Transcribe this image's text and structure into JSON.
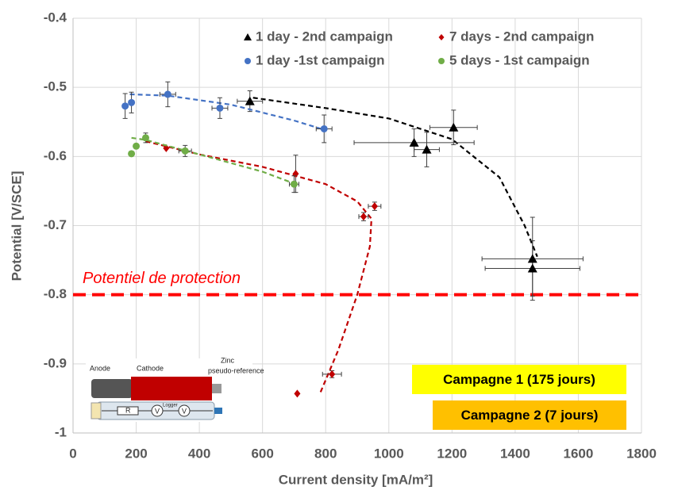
{
  "chart_data": {
    "type": "scatter",
    "x_label": "Current density [mA/m²]",
    "y_label": "Potential [V/SCE]",
    "xlim": [
      0,
      1800
    ],
    "xticks": [
      0,
      200,
      400,
      600,
      800,
      1000,
      1200,
      1400,
      1600,
      1800
    ],
    "ylim": [
      -1,
      -0.4
    ],
    "yticks": [
      -1,
      -0.9,
      -0.8,
      -0.7,
      -0.6,
      -0.5,
      -0.4
    ],
    "grid": true,
    "legend": "top",
    "series": [
      {
        "name": "1 day - 2nd campaign",
        "color": "#000000",
        "marker": "triangle",
        "x": [
          560,
          1080,
          1120,
          1205,
          1455,
          1455
        ],
        "values": [
          -0.52,
          -0.58,
          -0.59,
          -0.558,
          -0.748,
          -0.762
        ],
        "x_errors": [
          40,
          190,
          40,
          75,
          160,
          150
        ],
        "y_errors": [
          0.015,
          0.02,
          0.025,
          0.025,
          0.06,
          0.04
        ],
        "trend": {
          "x": [
            570,
            800,
            1000,
            1200,
            1350,
            1430,
            1470
          ],
          "values": [
            -0.515,
            -0.53,
            -0.545,
            -0.575,
            -0.63,
            -0.7,
            -0.745
          ]
        }
      },
      {
        "name": "7 days - 2nd campaign",
        "color": "#c00000",
        "marker": "diamond",
        "x": [
          295,
          705,
          920,
          955,
          820,
          710
        ],
        "values": [
          -0.588,
          -0.625,
          -0.687,
          -0.672,
          -0.915,
          -0.943
        ],
        "x_errors": [
          0,
          0,
          15,
          20,
          30,
          0
        ],
        "y_errors": [
          0,
          0.027,
          0.006,
          0.006,
          0.005,
          0
        ],
        "trend": {
          "x": [
            230,
            400,
            600,
            800,
            900,
            945,
            940,
            900,
            840,
            780
          ],
          "values": [
            -0.578,
            -0.597,
            -0.615,
            -0.64,
            -0.665,
            -0.69,
            -0.73,
            -0.8,
            -0.88,
            -0.945
          ]
        }
      },
      {
        "name": "1 day -1st campaign",
        "color": "#4472c4",
        "marker": "circle",
        "x": [
          165,
          185,
          300,
          465,
          795
        ],
        "values": [
          -0.527,
          -0.522,
          -0.51,
          -0.53,
          -0.56
        ],
        "x_errors": [
          0,
          0,
          25,
          25,
          25
        ],
        "y_errors": [
          0.018,
          0.015,
          0.018,
          0.015,
          0.02
        ],
        "trend": {
          "x": [
            180,
            300,
            500,
            700,
            800
          ],
          "values": [
            -0.51,
            -0.512,
            -0.525,
            -0.548,
            -0.562
          ]
        }
      },
      {
        "name": "5 days - 1st campaign",
        "color": "#70ad47",
        "marker": "circle",
        "x": [
          185,
          200,
          230,
          355,
          700
        ],
        "values": [
          -0.596,
          -0.585,
          -0.573,
          -0.592,
          -0.64
        ],
        "x_errors": [
          0,
          0,
          0,
          20,
          15
        ],
        "y_errors": [
          0,
          0,
          0.007,
          0.008,
          0.012
        ],
        "trend": {
          "x": [
            185,
            230,
            400,
            600,
            705
          ],
          "values": [
            -0.573,
            -0.576,
            -0.597,
            -0.622,
            -0.64
          ]
        }
      }
    ],
    "reference_line": {
      "value": -0.8,
      "label": "Potentiel de protection",
      "color": "#ff0000"
    },
    "boxes": [
      {
        "label": "Campagne 1 (175 jours)",
        "color": "#ffff00"
      },
      {
        "label": "Campagne 2 (7 jours)",
        "color": "#ffc000"
      }
    ],
    "inset_labels": [
      "Anode",
      "Cathode",
      "Zinc",
      "pseudo-reference",
      "R",
      "V",
      "V",
      "Logger"
    ]
  }
}
